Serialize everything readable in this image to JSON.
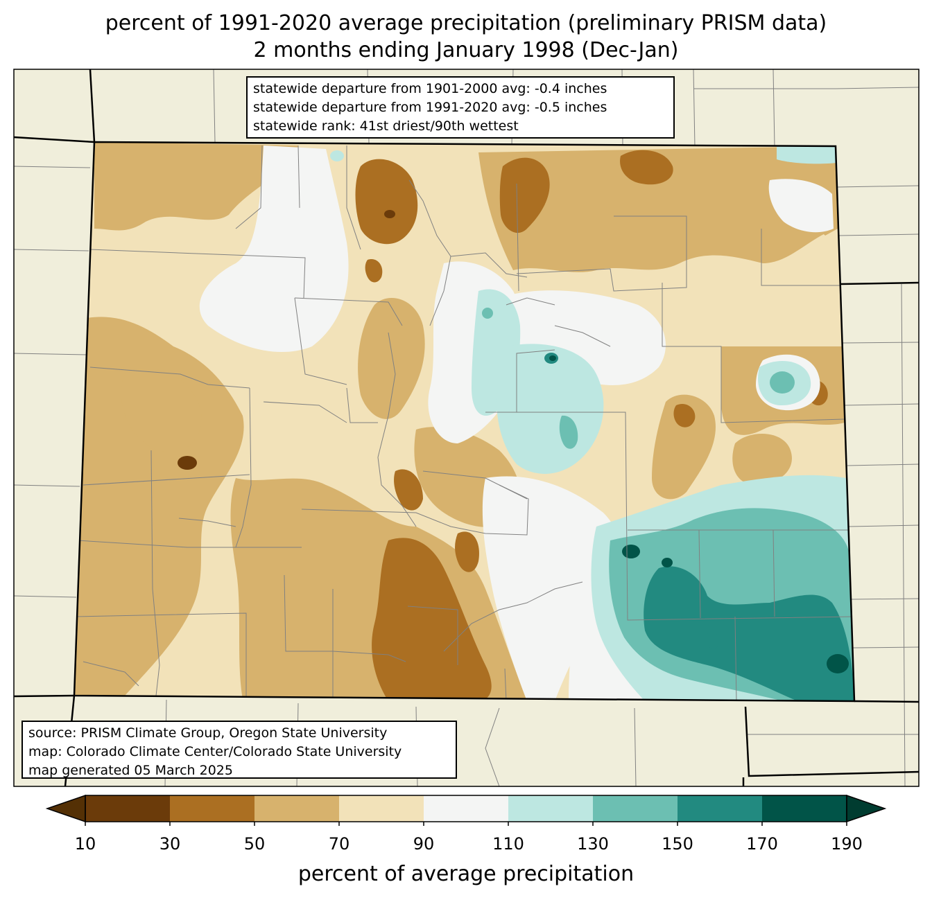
{
  "title_line1": "percent of 1991-2020 average precipitation (preliminary PRISM data)",
  "title_line2": "2 months ending January 1998 (Dec-Jan)",
  "stats_box": [
    "statewide departure from 1901-2000 avg: -0.4 inches",
    "statewide departure from 1991-2020 avg: -0.5 inches",
    "statewide rank: 41st driest/90th wettest"
  ],
  "source_box": [
    "source: PRISM Climate Group, Oregon State University",
    "map: Colorado Climate Center/Colorado State University",
    "map generated 05 March 2025"
  ],
  "colorbar": {
    "label": "percent of average precipitation",
    "ticks": [
      "10",
      "30",
      "50",
      "70",
      "90",
      "110",
      "130",
      "150",
      "170",
      "190"
    ],
    "under_color": "#543005",
    "over_color": "#003c30",
    "bins": [
      {
        "min": 10,
        "max": 30,
        "color": "#6b3b0a"
      },
      {
        "min": 30,
        "max": 50,
        "color": "#ab6f22"
      },
      {
        "min": 50,
        "max": 70,
        "color": "#d7b26d"
      },
      {
        "min": 70,
        "max": 90,
        "color": "#f2e2b9"
      },
      {
        "min": 90,
        "max": 110,
        "color": "#f4f5f4"
      },
      {
        "min": 110,
        "max": 130,
        "color": "#bde7e1"
      },
      {
        "min": 130,
        "max": 150,
        "color": "#6cbfb2"
      },
      {
        "min": 150,
        "max": 170,
        "color": "#228a80"
      },
      {
        "min": 170,
        "max": 190,
        "color": "#015448"
      }
    ]
  },
  "map_colors": {
    "outside_land": "#f0eedb",
    "county_lines": "#808080",
    "state_lines": "#000000"
  }
}
